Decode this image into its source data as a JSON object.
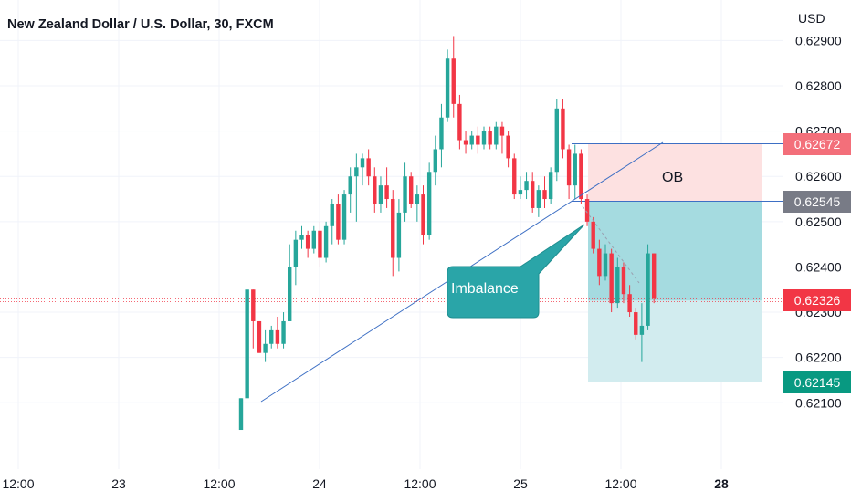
{
  "header": {
    "title": "New Zealand Dollar / U.S. Dollar, 30, FXCM",
    "currency": "USD"
  },
  "annotations": {
    "ob_label": "OB",
    "imbalance_label": "Imbalance"
  },
  "badges": [
    {
      "id": "badge-ob-top",
      "label": "0.62672",
      "color": "#f36f7a",
      "value": 0.62672
    },
    {
      "id": "badge-entry",
      "label": "0.62545",
      "color": "#787b86",
      "value": 0.62545
    },
    {
      "id": "badge-last-price",
      "label": "0.62326",
      "color": "#f23645",
      "value": 0.62326
    },
    {
      "id": "badge-target",
      "label": "0.62145",
      "color": "#089981",
      "value": 0.62145
    }
  ],
  "colors": {
    "up": "#26a69a",
    "down": "#f23645",
    "ob_zone": "#fde1e1",
    "target_zone": "#d2ecef",
    "profit_zone": "#a5dbe0",
    "trendline": "#3d6fc4",
    "callout": "#2aa5a8",
    "grid": "#f0f3fa"
  },
  "chart_data": {
    "type": "candlestick",
    "title": "New Zealand Dollar / U.S. Dollar, 30, FXCM",
    "ylabel": "USD",
    "ylim": [
      0.62035,
      0.62922
    ],
    "y_ticks": [
      "0.62900",
      "0.62800",
      "0.62700",
      "0.62600",
      "0.62500",
      "0.62400",
      "0.62300",
      "0.62200",
      "0.62100"
    ],
    "x_ticks": [
      "12:00",
      "23",
      "12:00",
      "24",
      "12:00",
      "25",
      "12:00",
      "28"
    ],
    "legend": "none",
    "grid": true,
    "last_price": 0.62326,
    "series": [
      {
        "name": "NZDUSD",
        "values": [
          [
            0.6204,
            0.6211,
            0.6204,
            0.6211
          ],
          [
            0.6211,
            0.6235,
            0.6212,
            0.6235
          ],
          [
            0.6235,
            0.6235,
            0.6222,
            0.6228
          ],
          [
            0.6228,
            0.6228,
            0.6221,
            0.6221
          ],
          [
            0.6221,
            0.6226,
            0.6219,
            0.6223
          ],
          [
            0.6223,
            0.6227,
            0.6222,
            0.6226
          ],
          [
            0.6226,
            0.6229,
            0.6222,
            0.6223
          ],
          [
            0.6223,
            0.623,
            0.6222,
            0.6228
          ],
          [
            0.6228,
            0.6245,
            0.6228,
            0.624
          ],
          [
            0.624,
            0.6248,
            0.6236,
            0.6246
          ],
          [
            0.6246,
            0.6249,
            0.6244,
            0.6247
          ],
          [
            0.6247,
            0.6248,
            0.6242,
            0.6244
          ],
          [
            0.6244,
            0.6249,
            0.6243,
            0.6248
          ],
          [
            0.6248,
            0.625,
            0.624,
            0.6242
          ],
          [
            0.6242,
            0.625,
            0.6241,
            0.6249
          ],
          [
            0.6249,
            0.6255,
            0.6245,
            0.6254
          ],
          [
            0.6254,
            0.6256,
            0.6245,
            0.6246
          ],
          [
            0.6246,
            0.6257,
            0.6245,
            0.6256
          ],
          [
            0.6256,
            0.6262,
            0.6252,
            0.626
          ],
          [
            0.626,
            0.6265,
            0.625,
            0.6262
          ],
          [
            0.6262,
            0.6265,
            0.6258,
            0.6264
          ],
          [
            0.6264,
            0.6266,
            0.6258,
            0.626
          ],
          [
            0.626,
            0.6262,
            0.6252,
            0.6254
          ],
          [
            0.6254,
            0.626,
            0.6252,
            0.6258
          ],
          [
            0.6258,
            0.6262,
            0.6253,
            0.6255
          ],
          [
            0.6255,
            0.6257,
            0.6238,
            0.6242
          ],
          [
            0.6242,
            0.6255,
            0.6239,
            0.6252
          ],
          [
            0.6252,
            0.6263,
            0.625,
            0.626
          ],
          [
            0.626,
            0.6261,
            0.6253,
            0.6254
          ],
          [
            0.6254,
            0.6258,
            0.625,
            0.6256
          ],
          [
            0.6256,
            0.6258,
            0.6245,
            0.6247
          ],
          [
            0.6247,
            0.6263,
            0.6246,
            0.6261
          ],
          [
            0.6261,
            0.6269,
            0.6258,
            0.6266
          ],
          [
            0.6266,
            0.6276,
            0.6262,
            0.6273
          ],
          [
            0.6273,
            0.6288,
            0.6272,
            0.6286
          ],
          [
            0.6286,
            0.6291,
            0.6273,
            0.6276
          ],
          [
            0.6276,
            0.6278,
            0.6266,
            0.6268
          ],
          [
            0.6268,
            0.627,
            0.6265,
            0.6267
          ],
          [
            0.6267,
            0.627,
            0.6266,
            0.6269
          ],
          [
            0.6269,
            0.6271,
            0.6265,
            0.6267
          ],
          [
            0.6267,
            0.6271,
            0.6266,
            0.627
          ],
          [
            0.627,
            0.6271,
            0.6266,
            0.6267
          ],
          [
            0.6267,
            0.6272,
            0.6266,
            0.6271
          ],
          [
            0.6271,
            0.6272,
            0.6265,
            0.6269
          ],
          [
            0.6269,
            0.627,
            0.6262,
            0.6264
          ],
          [
            0.6264,
            0.6265,
            0.6255,
            0.6256
          ],
          [
            0.6256,
            0.626,
            0.6255,
            0.6257
          ],
          [
            0.6257,
            0.6261,
            0.6255,
            0.6259
          ],
          [
            0.6259,
            0.6261,
            0.6252,
            0.6253
          ],
          [
            0.6253,
            0.6258,
            0.6251,
            0.6257
          ],
          [
            0.6257,
            0.626,
            0.6253,
            0.6255
          ],
          [
            0.6255,
            0.6262,
            0.6254,
            0.6261
          ],
          [
            0.6261,
            0.6277,
            0.6259,
            0.6275
          ],
          [
            0.6275,
            0.6277,
            0.6264,
            0.6266
          ],
          [
            0.6266,
            0.6267,
            0.6255,
            0.6258
          ],
          [
            0.6258,
            0.6267,
            0.6255,
            0.6265
          ],
          [
            0.6265,
            0.6266,
            0.6254,
            0.6255
          ],
          [
            0.6255,
            0.6256,
            0.6249,
            0.625
          ],
          [
            0.625,
            0.6251,
            0.6243,
            0.6244
          ],
          [
            0.6244,
            0.6246,
            0.6236,
            0.6238
          ],
          [
            0.6238,
            0.6245,
            0.6237,
            0.6243
          ],
          [
            0.6243,
            0.6244,
            0.623,
            0.6232
          ],
          [
            0.6232,
            0.6242,
            0.6231,
            0.624
          ],
          [
            0.624,
            0.6241,
            0.6232,
            0.6234
          ],
          [
            0.6234,
            0.6236,
            0.6229,
            0.623
          ],
          [
            0.623,
            0.6231,
            0.6224,
            0.6225
          ],
          [
            0.6225,
            0.6232,
            0.6219,
            0.6227
          ],
          [
            0.6227,
            0.6245,
            0.6226,
            0.6243
          ],
          [
            0.6243,
            0.6243,
            0.6232,
            0.6233
          ]
        ]
      }
    ]
  }
}
